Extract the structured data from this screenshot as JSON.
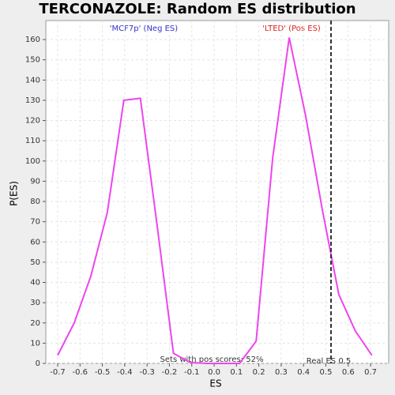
{
  "chart_data": {
    "type": "line",
    "title": "TERCONAZOLE: Random ES distribution",
    "x_label": "ES",
    "y_label": "P(ES)",
    "x": [
      -0.7,
      -0.626,
      -0.552,
      -0.478,
      -0.404,
      -0.33,
      -0.256,
      -0.182,
      -0.108,
      -0.034,
      0.04,
      0.114,
      0.188,
      0.262,
      0.336,
      0.41,
      0.484,
      0.558,
      0.632,
      0.706
    ],
    "series": [
      {
        "name": "P(ES)",
        "color": "#ee44ee",
        "values": [
          4,
          20,
          43,
          74.5,
          130,
          131,
          69,
          5,
          0.5,
          0,
          0,
          0,
          11,
          101.5,
          161,
          122,
          76,
          34,
          16,
          4
        ]
      }
    ],
    "xlim": [
      -0.753,
      0.781
    ],
    "ylim": [
      0,
      169.4
    ],
    "xticks": [
      -0.7,
      -0.6,
      -0.5,
      -0.4,
      -0.3,
      -0.2,
      -0.1,
      {
        "value": 0,
        "label": "0.0"
      },
      0.1,
      0.2,
      0.3,
      0.4,
      0.5,
      0.6,
      0.7
    ],
    "yticks": [
      0,
      10,
      20,
      30,
      40,
      50,
      60,
      70,
      80,
      90,
      100,
      110,
      120,
      130,
      140,
      150,
      160
    ],
    "grid": true,
    "real_es": 0.523,
    "annotations": {
      "neg": "'MCF7p' (Neg ES)",
      "pos": "'LTED' (Pos ES)",
      "sets": "Sets with pos scores: 52%",
      "real_es": "Real ES 0.5"
    }
  }
}
